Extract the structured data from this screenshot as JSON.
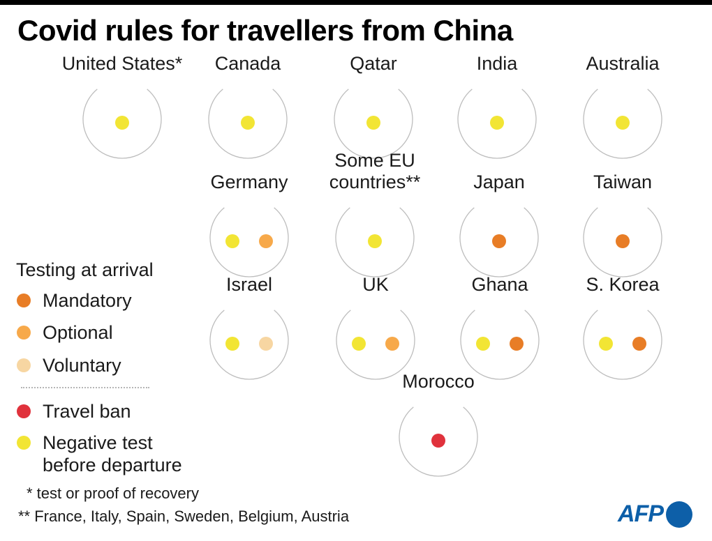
{
  "title": "Covid rules for travellers from China",
  "colors": {
    "mandatory": "#e87d26",
    "optional": "#f7a94a",
    "voluntary": "#f7d6a2",
    "travel_ban": "#e0323c",
    "negative_test": "#f2e534",
    "circle_stroke": "#bdbdbd",
    "afp_blue": "#0d5fa8"
  },
  "legend": {
    "heading": "Testing at arrival",
    "items": [
      {
        "key": "mandatory",
        "label": "Mandatory"
      },
      {
        "key": "optional",
        "label": "Optional"
      },
      {
        "key": "voluntary",
        "label": "Voluntary"
      },
      {
        "key": "travel_ban",
        "label": "Travel ban"
      },
      {
        "key": "negative_test",
        "label": "Negative test\nbefore departure"
      }
    ]
  },
  "notes": {
    "asterisk": "* test or proof of recovery",
    "double_asterisk": "** France, Italy, Spain, Sweden, Belgium, Austria"
  },
  "logo": {
    "text": "AFP"
  },
  "chart_data": {
    "type": "table",
    "title": "Covid rules for travellers from China",
    "categories": [
      "negative_test",
      "mandatory",
      "optional",
      "voluntary",
      "travel_ban"
    ],
    "countries": [
      {
        "name": "United States*",
        "rules": [
          "negative_test"
        ]
      },
      {
        "name": "Canada",
        "rules": [
          "negative_test"
        ]
      },
      {
        "name": "Qatar",
        "rules": [
          "negative_test"
        ]
      },
      {
        "name": "India",
        "rules": [
          "negative_test"
        ]
      },
      {
        "name": "Australia",
        "rules": [
          "negative_test"
        ]
      },
      {
        "name": "Germany",
        "rules": [
          "negative_test",
          "optional"
        ]
      },
      {
        "name": "Some EU\ncountries**",
        "rules": [
          "negative_test"
        ]
      },
      {
        "name": "Japan",
        "rules": [
          "mandatory"
        ]
      },
      {
        "name": "Taiwan",
        "rules": [
          "mandatory"
        ]
      },
      {
        "name": "Israel",
        "rules": [
          "negative_test",
          "voluntary"
        ]
      },
      {
        "name": "UK",
        "rules": [
          "negative_test",
          "optional"
        ]
      },
      {
        "name": "Ghana",
        "rules": [
          "negative_test",
          "mandatory"
        ]
      },
      {
        "name": "S. Korea",
        "rules": [
          "negative_test",
          "mandatory"
        ]
      },
      {
        "name": "Morocco",
        "rules": [
          "travel_ban"
        ]
      }
    ]
  }
}
